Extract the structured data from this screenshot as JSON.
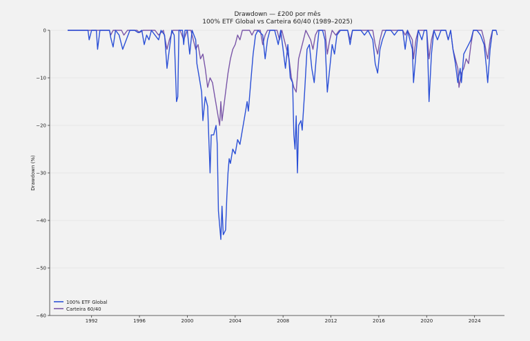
{
  "chart_data": {
    "type": "line",
    "title": "Drawdown — £200 por mês",
    "subtitle": "100% ETF Global vs Carteira 60/40 (1989–2025)",
    "xlabel": "",
    "ylabel": "Drawdown (%)",
    "xlim": [
      1988.5,
      2026.5
    ],
    "ylim": [
      -60,
      0
    ],
    "xticks": [
      "1992",
      "1996",
      "2000",
      "2004",
      "2008",
      "2012",
      "2016",
      "2020",
      "2024"
    ],
    "yticks": [
      "0",
      "−10",
      "−20",
      "−30",
      "−40",
      "−50",
      "−60"
    ],
    "grid": "horizontal",
    "legend": "bottom-left",
    "series": [
      {
        "name": "100% ETF Global",
        "color": "#2a4fd6",
        "points": [
          [
            1990.0,
            0
          ],
          [
            1991.7,
            0
          ],
          [
            1991.8,
            -2
          ],
          [
            1992.0,
            0
          ],
          [
            1992.4,
            0
          ],
          [
            1992.5,
            -4
          ],
          [
            1992.7,
            0
          ],
          [
            1993.5,
            0
          ],
          [
            1993.6,
            -1.5
          ],
          [
            1993.8,
            -3.5
          ],
          [
            1994.0,
            0
          ],
          [
            1994.3,
            -1
          ],
          [
            1994.6,
            -4
          ],
          [
            1994.9,
            -2
          ],
          [
            1995.2,
            0
          ],
          [
            1995.6,
            0
          ],
          [
            1995.9,
            -0.5
          ],
          [
            1996.2,
            0
          ],
          [
            1996.4,
            -3
          ],
          [
            1996.6,
            -1
          ],
          [
            1996.8,
            -2
          ],
          [
            1997.0,
            0
          ],
          [
            1997.3,
            -1
          ],
          [
            1997.6,
            -2
          ],
          [
            1997.8,
            0
          ],
          [
            1998.1,
            -1
          ],
          [
            1998.3,
            -8
          ],
          [
            1998.5,
            -4
          ],
          [
            1998.7,
            0
          ],
          [
            1998.9,
            -1
          ],
          [
            1999.1,
            -15
          ],
          [
            1999.2,
            -14
          ],
          [
            1999.3,
            0
          ],
          [
            1999.6,
            0
          ],
          [
            1999.7,
            -3
          ],
          [
            1999.8,
            0
          ],
          [
            2000.0,
            0
          ],
          [
            2000.2,
            -5
          ],
          [
            2000.4,
            0
          ],
          [
            2000.7,
            -2
          ],
          [
            2000.8,
            -7
          ],
          [
            2001.0,
            -10
          ],
          [
            2001.2,
            -13
          ],
          [
            2001.3,
            -19
          ],
          [
            2001.5,
            -14
          ],
          [
            2001.7,
            -16
          ],
          [
            2001.9,
            -30
          ],
          [
            2002.0,
            -22
          ],
          [
            2002.2,
            -22
          ],
          [
            2002.4,
            -20
          ],
          [
            2002.5,
            -24
          ],
          [
            2002.6,
            -38
          ],
          [
            2002.8,
            -44
          ],
          [
            2002.9,
            -37
          ],
          [
            2003.0,
            -43
          ],
          [
            2003.2,
            -42
          ],
          [
            2003.3,
            -35
          ],
          [
            2003.4,
            -30
          ],
          [
            2003.5,
            -27
          ],
          [
            2003.6,
            -28
          ],
          [
            2003.8,
            -25
          ],
          [
            2004.0,
            -26
          ],
          [
            2004.2,
            -23
          ],
          [
            2004.4,
            -24
          ],
          [
            2004.6,
            -21
          ],
          [
            2004.8,
            -18
          ],
          [
            2005.0,
            -15
          ],
          [
            2005.1,
            -17
          ],
          [
            2005.3,
            -11
          ],
          [
            2005.5,
            -5
          ],
          [
            2005.7,
            -1
          ],
          [
            2005.9,
            0
          ],
          [
            2006.3,
            -1
          ],
          [
            2006.5,
            -6
          ],
          [
            2006.7,
            -2
          ],
          [
            2006.9,
            0
          ],
          [
            2007.3,
            0
          ],
          [
            2007.6,
            -3
          ],
          [
            2007.8,
            0
          ],
          [
            2008.0,
            -4
          ],
          [
            2008.2,
            -8
          ],
          [
            2008.4,
            -3
          ],
          [
            2008.6,
            -10
          ],
          [
            2008.8,
            -11
          ],
          [
            2008.9,
            -22
          ],
          [
            2009.0,
            -25
          ],
          [
            2009.1,
            -18
          ],
          [
            2009.2,
            -30
          ],
          [
            2009.3,
            -20
          ],
          [
            2009.5,
            -19
          ],
          [
            2009.6,
            -21
          ],
          [
            2009.8,
            -13
          ],
          [
            2010.0,
            -4
          ],
          [
            2010.2,
            -3
          ],
          [
            2010.4,
            -8
          ],
          [
            2010.6,
            -11
          ],
          [
            2010.8,
            -5
          ],
          [
            2011.0,
            0
          ],
          [
            2011.3,
            0
          ],
          [
            2011.5,
            -2
          ],
          [
            2011.7,
            -13
          ],
          [
            2011.9,
            -8
          ],
          [
            2012.1,
            -3
          ],
          [
            2012.3,
            -5
          ],
          [
            2012.5,
            -1
          ],
          [
            2012.8,
            0
          ],
          [
            2013.4,
            0
          ],
          [
            2013.6,
            -3
          ],
          [
            2013.8,
            0
          ],
          [
            2014.5,
            0
          ],
          [
            2014.8,
            -1
          ],
          [
            2015.1,
            0
          ],
          [
            2015.5,
            -2
          ],
          [
            2015.7,
            -7
          ],
          [
            2015.9,
            -9
          ],
          [
            2016.1,
            -4
          ],
          [
            2016.3,
            -2
          ],
          [
            2016.6,
            0
          ],
          [
            2017.0,
            0
          ],
          [
            2017.3,
            -1
          ],
          [
            2017.6,
            0
          ],
          [
            2018.0,
            0
          ],
          [
            2018.2,
            -4
          ],
          [
            2018.4,
            0
          ],
          [
            2018.8,
            -4
          ],
          [
            2018.9,
            -11
          ],
          [
            2019.1,
            -5
          ],
          [
            2019.3,
            0
          ],
          [
            2019.6,
            -2
          ],
          [
            2019.8,
            0
          ],
          [
            2020.0,
            0
          ],
          [
            2020.1,
            -6
          ],
          [
            2020.2,
            -15
          ],
          [
            2020.4,
            -5
          ],
          [
            2020.6,
            0
          ],
          [
            2020.9,
            -2
          ],
          [
            2021.2,
            0
          ],
          [
            2021.6,
            0
          ],
          [
            2021.8,
            -2
          ],
          [
            2022.0,
            0
          ],
          [
            2022.2,
            -4
          ],
          [
            2022.4,
            -7
          ],
          [
            2022.6,
            -11
          ],
          [
            2022.8,
            -8
          ],
          [
            2022.9,
            -11
          ],
          [
            2023.1,
            -5
          ],
          [
            2023.3,
            -4
          ],
          [
            2023.5,
            -3
          ],
          [
            2023.7,
            -2
          ],
          [
            2023.9,
            0
          ],
          [
            2024.2,
            0
          ],
          [
            2024.5,
            -1
          ],
          [
            2024.8,
            -3
          ],
          [
            2025.0,
            -8
          ],
          [
            2025.1,
            -11
          ],
          [
            2025.3,
            -4
          ],
          [
            2025.5,
            0
          ],
          [
            2025.8,
            0
          ],
          [
            2025.9,
            -1
          ]
        ]
      },
      {
        "name": "Carteira 60/40",
        "color": "#7a56a8",
        "points": [
          [
            1990.0,
            0
          ],
          [
            1993.5,
            0
          ],
          [
            1993.6,
            -1
          ],
          [
            1993.8,
            0
          ],
          [
            1994.5,
            0
          ],
          [
            1994.7,
            -1
          ],
          [
            1995.0,
            0
          ],
          [
            1995.8,
            0
          ],
          [
            1996.0,
            -0.5
          ],
          [
            1996.3,
            0
          ],
          [
            1997.3,
            0
          ],
          [
            1997.6,
            -1
          ],
          [
            1998.0,
            0
          ],
          [
            1998.3,
            -4
          ],
          [
            1998.5,
            -2
          ],
          [
            1998.8,
            0
          ],
          [
            1999.4,
            0
          ],
          [
            1999.7,
            -2
          ],
          [
            2000.0,
            0
          ],
          [
            2000.3,
            0
          ],
          [
            2000.5,
            -2
          ],
          [
            2000.7,
            -4
          ],
          [
            2000.9,
            -3
          ],
          [
            2001.1,
            -6
          ],
          [
            2001.3,
            -5
          ],
          [
            2001.5,
            -8
          ],
          [
            2001.7,
            -12
          ],
          [
            2001.9,
            -10
          ],
          [
            2002.1,
            -11
          ],
          [
            2002.3,
            -14
          ],
          [
            2002.5,
            -17
          ],
          [
            2002.7,
            -20
          ],
          [
            2002.8,
            -15
          ],
          [
            2002.9,
            -19
          ],
          [
            2003.0,
            -17
          ],
          [
            2003.2,
            -13
          ],
          [
            2003.4,
            -9
          ],
          [
            2003.6,
            -6
          ],
          [
            2003.8,
            -4
          ],
          [
            2004.0,
            -3
          ],
          [
            2004.2,
            -1
          ],
          [
            2004.4,
            -2
          ],
          [
            2004.6,
            0
          ],
          [
            2005.2,
            0
          ],
          [
            2005.4,
            -1
          ],
          [
            2005.6,
            0
          ],
          [
            2006.1,
            0
          ],
          [
            2006.3,
            -3
          ],
          [
            2006.5,
            -1
          ],
          [
            2006.7,
            0
          ],
          [
            2007.5,
            0
          ],
          [
            2007.7,
            -2
          ],
          [
            2007.9,
            0
          ],
          [
            2008.1,
            -2
          ],
          [
            2008.3,
            -4
          ],
          [
            2008.5,
            -6
          ],
          [
            2008.7,
            -10
          ],
          [
            2008.9,
            -12
          ],
          [
            2009.1,
            -13
          ],
          [
            2009.3,
            -6
          ],
          [
            2009.5,
            -4
          ],
          [
            2009.7,
            -2
          ],
          [
            2009.9,
            0
          ],
          [
            2010.3,
            -2
          ],
          [
            2010.5,
            -4
          ],
          [
            2010.7,
            -1
          ],
          [
            2010.9,
            0
          ],
          [
            2011.5,
            0
          ],
          [
            2011.7,
            -5
          ],
          [
            2011.9,
            -2
          ],
          [
            2012.1,
            0
          ],
          [
            2012.4,
            -1
          ],
          [
            2012.7,
            0
          ],
          [
            2013.4,
            0
          ],
          [
            2013.6,
            -2
          ],
          [
            2013.8,
            0
          ],
          [
            2015.5,
            0
          ],
          [
            2015.7,
            -3
          ],
          [
            2015.9,
            -5
          ],
          [
            2016.1,
            -2
          ],
          [
            2016.3,
            0
          ],
          [
            2018.0,
            0
          ],
          [
            2018.2,
            -1
          ],
          [
            2018.4,
            0
          ],
          [
            2018.8,
            -2
          ],
          [
            2018.9,
            -6
          ],
          [
            2019.1,
            -2
          ],
          [
            2019.3,
            0
          ],
          [
            2020.0,
            0
          ],
          [
            2020.2,
            -6
          ],
          [
            2020.4,
            -2
          ],
          [
            2020.6,
            0
          ],
          [
            2021.6,
            0
          ],
          [
            2021.8,
            -2
          ],
          [
            2022.0,
            0
          ],
          [
            2022.2,
            -4
          ],
          [
            2022.4,
            -6
          ],
          [
            2022.6,
            -8
          ],
          [
            2022.7,
            -12
          ],
          [
            2022.9,
            -9
          ],
          [
            2023.1,
            -8
          ],
          [
            2023.3,
            -6
          ],
          [
            2023.5,
            -7
          ],
          [
            2023.7,
            -3
          ],
          [
            2023.9,
            0
          ],
          [
            2024.6,
            0
          ],
          [
            2024.8,
            -2
          ],
          [
            2025.0,
            -5
          ],
          [
            2025.1,
            -6
          ],
          [
            2025.3,
            -2
          ],
          [
            2025.5,
            0
          ],
          [
            2025.8,
            0
          ]
        ]
      }
    ]
  }
}
